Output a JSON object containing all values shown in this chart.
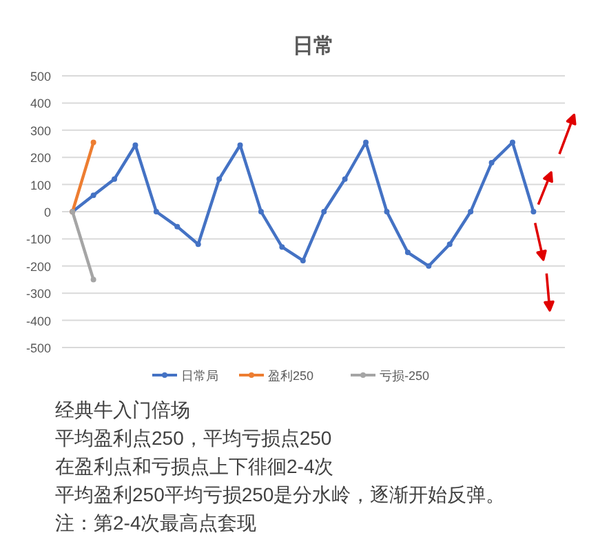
{
  "chart_data": {
    "type": "line",
    "title": "日常",
    "categories": [
      null,
      null,
      null,
      null,
      null,
      null,
      null,
      null,
      null,
      null,
      null,
      null,
      null,
      null,
      null,
      null,
      null,
      null,
      null,
      null,
      null,
      null,
      null,
      null
    ],
    "series": [
      {
        "name": "日常局",
        "color": "#4472c4",
        "values": [
          0,
          60,
          120,
          245,
          0,
          -55,
          -120,
          120,
          245,
          0,
          -130,
          -180,
          0,
          120,
          255,
          0,
          -150,
          -200,
          -120,
          0,
          180,
          255,
          0,
          null
        ]
      },
      {
        "name": "盈利250",
        "color": "#ed7d31",
        "values": [
          0,
          255,
          null,
          null,
          null,
          null,
          null,
          null,
          null,
          null,
          null,
          null,
          null,
          null,
          null,
          null,
          null,
          null,
          null,
          null,
          null,
          null,
          null,
          null
        ]
      },
      {
        "name": "亏损-250",
        "color": "#a5a5a5",
        "values": [
          0,
          -250,
          null,
          null,
          null,
          null,
          null,
          null,
          null,
          null,
          null,
          null,
          null,
          null,
          null,
          null,
          null,
          null,
          null,
          null,
          null,
          null,
          null,
          null
        ]
      }
    ],
    "ylim": [
      -500,
      500
    ],
    "yticks": [
      -500,
      -400,
      -300,
      -200,
      -100,
      0,
      100,
      200,
      300,
      400,
      500
    ],
    "grid": "y",
    "legend": "bottom",
    "marker": "circle",
    "line_style": "solid",
    "annotations": [
      "经典牛入门倍场",
      "平均盈利点250，平均亏损点250",
      "在盈利点和亏损点上下徘徊2-4次",
      "平均盈利250平均亏损250是分水岭，逐渐开始反弹。",
      "注：第2-4次最高点套现"
    ]
  }
}
